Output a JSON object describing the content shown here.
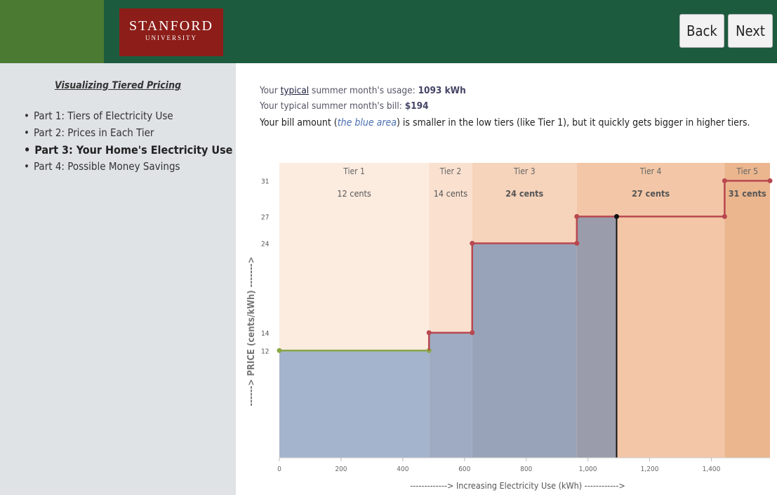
{
  "header": {
    "logo_title": "STANFORD",
    "logo_subtitle": "UNIVERSITY",
    "back_button": "Back",
    "next_button": "Next"
  },
  "sidebar": {
    "title": "Visualizing Tiered Pricing",
    "items": [
      "Part 1: Tiers of Electricity Use",
      "Part 2: Prices in Each Tier",
      "Part 3: Your Home's Electricity Use",
      "Part 4: Possible Money Savings"
    ],
    "active_item": 2
  },
  "intro": {
    "usage_prefix": "Your",
    "usage_link": "typical",
    "usage_text": "summer month's usage:",
    "usage_value": "1093 kWh",
    "bill_text": "Your typical summer month's bill:",
    "bill_value": "$194",
    "note_start": "Your bill amount (",
    "note_emphasis": "the blue area",
    "note_end": ") is smaller in the low tiers (like Tier 1), but it quickly gets bigger in higher tiers."
  },
  "chart_data": {
    "type": "step",
    "x_label": "-------------> Increasing Electricity Use (kWh) ------------>",
    "y_label": "------> PRICE (cents/kWh) ------->",
    "xlim": [
      0,
      1590
    ],
    "ylim": [
      0,
      33
    ],
    "xticks": [
      0,
      200,
      400,
      600,
      800,
      {
        "value": 1000,
        "label": "1,000"
      },
      {
        "value": 1200,
        "label": "1,200"
      },
      {
        "value": 1400,
        "label": "1,400"
      }
    ],
    "yticks": [
      12,
      14,
      24,
      27,
      31
    ],
    "usage": 1093,
    "tiers": [
      {
        "name": "Tier 1",
        "label": "12 cents",
        "price": 12,
        "start": 0,
        "end": 485,
        "color": "#fcebdf",
        "area_color": "#a4b4cd",
        "line_color": "#8aa846"
      },
      {
        "name": "Tier 2",
        "label": "14 cents",
        "price": 14,
        "start": 485,
        "end": 625,
        "color": "#f9e0cf",
        "area_color": "#9eabc2",
        "line_color": "#b8474f"
      },
      {
        "name": "Tier 3",
        "label": "24 cents",
        "price": 24,
        "start": 625,
        "end": 964,
        "color": "#f6d3bb",
        "area_color": "#98a3b9",
        "line_color": "#b8474f"
      },
      {
        "name": "Tier 4",
        "label": "27 cents",
        "price": 27,
        "start": 964,
        "end": 1443,
        "color": "#f2c6a6",
        "area_color": "#9a9cab",
        "line_color": "#b8474f"
      },
      {
        "name": "Tier 5",
        "label": "31 cents",
        "price": 31,
        "start": 1443,
        "color": "#ebb68e",
        "area_color": "#9a9cab",
        "line_color": "#b8474f"
      }
    ]
  }
}
